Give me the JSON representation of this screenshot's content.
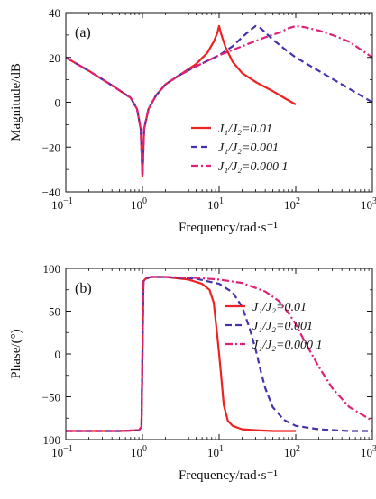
{
  "chart_data": [
    {
      "type": "line",
      "panel_label": "(a)",
      "xlabel": "Frequency/rad·s⁻¹",
      "ylabel": "Magnitude/dB",
      "xscale": "log",
      "xlim": [
        0.1,
        1000
      ],
      "ylim": [
        -40,
        40
      ],
      "x_ticks": [
        0.1,
        1,
        10,
        100,
        1000
      ],
      "x_tick_labels": [
        [
          "10",
          "−1"
        ],
        [
          "10",
          "0"
        ],
        [
          "10",
          "1"
        ],
        [
          "10",
          "2"
        ],
        [
          "10",
          "3"
        ]
      ],
      "y_ticks": [
        -40,
        -20,
        0,
        20,
        40
      ],
      "y_tick_labels": [
        "−40",
        "−20",
        "0",
        "20",
        "40"
      ],
      "grid": false,
      "legend": "lower-right",
      "series": [
        {
          "name": "J₁/J₂=0.01",
          "color": "#ee2222",
          "dash": "solid",
          "x": [
            0.1,
            0.2,
            0.4,
            0.7,
            0.85,
            0.95,
            1.0,
            1.05,
            1.2,
            1.5,
            2,
            3,
            5,
            7,
            8.5,
            9.5,
            10,
            10.5,
            12,
            15,
            20,
            30,
            50,
            70,
            100
          ],
          "y": [
            20,
            14,
            7.5,
            2,
            -3,
            -12,
            -33,
            -12,
            -3,
            3,
            8,
            12,
            17,
            22,
            27,
            31,
            34,
            31,
            25,
            18,
            13,
            9,
            5,
            2,
            -1
          ]
        },
        {
          "name": "J₁/J₂=0.001",
          "color": "#4433aa",
          "dash": "dash",
          "x": [
            0.1,
            0.2,
            0.4,
            0.7,
            0.85,
            0.95,
            1.0,
            1.05,
            1.2,
            1.5,
            2,
            3,
            5,
            10,
            15,
            20,
            25,
            30,
            35,
            50,
            70,
            100,
            200,
            500,
            1000
          ],
          "y": [
            20,
            14,
            7.5,
            2,
            -3,
            -12,
            -33,
            -12,
            -3,
            3,
            8,
            12,
            16,
            21,
            25,
            29,
            32,
            34,
            33,
            28,
            24,
            20,
            14,
            6,
            0
          ]
        },
        {
          "name": "J₁/J₂=0.000 1",
          "color": "#dd2277",
          "dash": "dashdot",
          "x": [
            0.1,
            0.2,
            0.4,
            0.7,
            0.85,
            0.95,
            1.0,
            1.05,
            1.2,
            1.5,
            2,
            3,
            5,
            10,
            20,
            40,
            60,
            80,
            100,
            130,
            200,
            300,
            500,
            1000
          ],
          "y": [
            20,
            14,
            7.5,
            2,
            -3,
            -12,
            -33,
            -12,
            -3,
            3,
            8,
            12,
            16,
            21,
            25,
            29,
            31,
            33,
            34,
            33.5,
            32,
            30,
            27,
            20
          ]
        }
      ]
    },
    {
      "type": "line",
      "panel_label": "(b)",
      "xlabel": "Frequency/rad·s⁻¹",
      "ylabel": "Phase/(°)",
      "xscale": "log",
      "xlim": [
        0.1,
        1000
      ],
      "ylim": [
        -100,
        100
      ],
      "x_ticks": [
        0.1,
        1,
        10,
        100,
        1000
      ],
      "x_tick_labels": [
        [
          "10",
          "−1"
        ],
        [
          "10",
          "0"
        ],
        [
          "10",
          "1"
        ],
        [
          "10",
          "2"
        ],
        [
          "10",
          "3"
        ]
      ],
      "y_ticks": [
        -100,
        -50,
        0,
        50,
        100
      ],
      "y_tick_labels": [
        "−100",
        "−50",
        "0",
        "50",
        "100"
      ],
      "grid": false,
      "legend": "right",
      "series": [
        {
          "name": "J₁/J₂=0.01",
          "color": "#ee2222",
          "dash": "solid",
          "x": [
            0.1,
            0.5,
            0.9,
            0.97,
            1.0,
            1.03,
            1.1,
            1.3,
            2,
            4,
            6,
            7.5,
            8.5,
            9.5,
            10,
            10.5,
            11.5,
            13,
            15,
            20,
            30,
            50,
            100
          ],
          "y": [
            -90,
            -90,
            -89,
            -85,
            0,
            85,
            88,
            90,
            90,
            87,
            82,
            75,
            60,
            20,
            0,
            -20,
            -60,
            -78,
            -84,
            -88,
            -89,
            -90,
            -90
          ]
        },
        {
          "name": "J₁/J₂=0.001",
          "color": "#4433aa",
          "dash": "dash",
          "x": [
            0.1,
            0.5,
            0.9,
            0.97,
            1.0,
            1.03,
            1.1,
            1.3,
            2,
            5,
            10,
            15,
            20,
            25,
            30,
            35,
            40,
            50,
            70,
            100,
            200,
            500,
            1000
          ],
          "y": [
            -90,
            -90,
            -89,
            -85,
            0,
            85,
            88,
            90,
            90,
            88,
            82,
            72,
            55,
            30,
            5,
            -20,
            -40,
            -62,
            -77,
            -84,
            -88,
            -90,
            -90
          ]
        },
        {
          "name": "J₁/J₂=0.000 1",
          "color": "#dd2277",
          "dash": "dashdot",
          "x": [
            0.1,
            0.5,
            0.9,
            0.97,
            1.0,
            1.03,
            1.1,
            1.3,
            2,
            5,
            10,
            20,
            40,
            60,
            80,
            100,
            130,
            200,
            300,
            500,
            1000
          ],
          "y": [
            -90,
            -90,
            -89,
            -85,
            0,
            85,
            88,
            90,
            90,
            89,
            87,
            83,
            73,
            62,
            48,
            35,
            15,
            -15,
            -40,
            -62,
            -78
          ]
        }
      ]
    }
  ]
}
